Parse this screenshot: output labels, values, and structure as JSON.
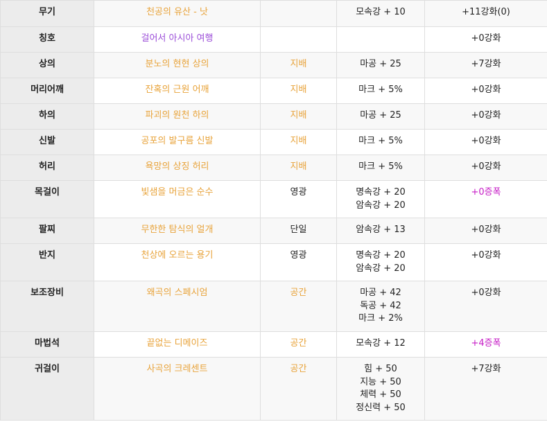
{
  "rows": [
    {
      "slot": "무기",
      "name": "천공의 유산 - 낫",
      "grade": "",
      "options": [
        "모속강 + 10"
      ],
      "enhance": "+11강화(0)"
    },
    {
      "slot": "칭호",
      "name": "걸어서 아시아 여행",
      "grade": "",
      "options": [],
      "enhance": "+0강화"
    },
    {
      "slot": "상의",
      "name": "분노의 현현 상의",
      "grade": "지배",
      "options": [
        "마공 + 25"
      ],
      "enhance": "+7강화"
    },
    {
      "slot": "머리어깨",
      "name": "잔혹의 근원 어깨",
      "grade": "지배",
      "options": [
        "마크 + 5%"
      ],
      "enhance": "+0강화"
    },
    {
      "slot": "하의",
      "name": "파괴의 원천 하의",
      "grade": "지배",
      "options": [
        "마공 + 25"
      ],
      "enhance": "+0강화"
    },
    {
      "slot": "신발",
      "name": "공포의 발구름 신발",
      "grade": "지배",
      "options": [
        "마크 + 5%"
      ],
      "enhance": "+0강화"
    },
    {
      "slot": "허리",
      "name": "욕망의 상징 허리",
      "grade": "지배",
      "options": [
        "마크 + 5%"
      ],
      "enhance": "+0강화"
    },
    {
      "slot": "목걸이",
      "name": "빛샘을 머금은 순수",
      "grade": "영광",
      "options": [
        "명속강 + 20",
        "암속강 + 20"
      ],
      "enhance": "+0증폭"
    },
    {
      "slot": "팔찌",
      "name": "무한한 탐식의 얼개",
      "grade": "단일",
      "options": [
        "암속강 + 13"
      ],
      "enhance": "+0강화"
    },
    {
      "slot": "반지",
      "name": "천상에 오르는 용기",
      "grade": "영광",
      "options": [
        "명속강 + 20",
        "암속강 + 20"
      ],
      "enhance": "+0강화"
    },
    {
      "slot": "보조장비",
      "name": "왜곡의 스페시엄",
      "grade": "공간",
      "options": [
        "마공 + 42",
        "독공 + 42",
        "마크 + 2%"
      ],
      "enhance": "+0강화"
    },
    {
      "slot": "마법석",
      "name": "끝없는 디메이즈",
      "grade": "공간",
      "options": [
        "모속강 + 12"
      ],
      "enhance": "+4증폭"
    },
    {
      "slot": "귀걸이",
      "name": "사곡의 크레센트",
      "grade": "공간",
      "options": [
        "힘 + 50",
        "지능 + 50",
        "체력 + 50",
        "정신력 + 50"
      ],
      "enhance": "+7강화"
    }
  ],
  "colors": {
    "item_name": "#e8a33a",
    "title_name": "#9b4dd8",
    "amplify": "#c61cc6",
    "slot_bg": "#ececec"
  }
}
